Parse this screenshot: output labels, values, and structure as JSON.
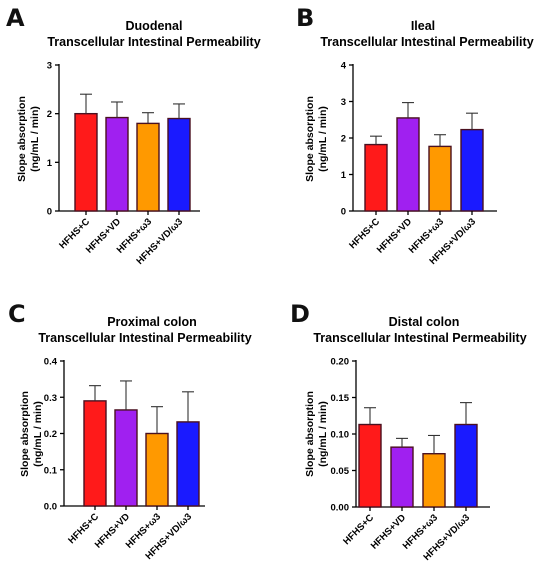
{
  "chart_data": [
    {
      "panel": "A",
      "type": "bar",
      "title": [
        "Duodenal",
        "Transcellular Intestinal Permeability"
      ],
      "ylabel": [
        "Slope absorption",
        "(ng/mL / min)"
      ],
      "ylim": [
        0,
        3
      ],
      "yticks": [
        "0",
        "1",
        "2",
        "3"
      ],
      "categories": [
        "HFHS+C",
        "HFHS+VD",
        "HFHS+ω3",
        "HFHS+VD/ω3"
      ],
      "values": [
        2.0,
        1.92,
        1.8,
        1.9
      ],
      "errors": [
        0.4,
        0.32,
        0.22,
        0.3
      ],
      "colors": [
        "#ff1a1a",
        "#a020f0",
        "#ff9900",
        "#1a1aff"
      ]
    },
    {
      "panel": "B",
      "type": "bar",
      "title": [
        "Ileal",
        "Transcellular Intestinal Permeability"
      ],
      "ylabel": [
        "Slope absorption",
        "(ng/mL / min)"
      ],
      "ylim": [
        0,
        4
      ],
      "yticks": [
        "0",
        "1",
        "2",
        "3",
        "4"
      ],
      "categories": [
        "HFHS+C",
        "HFHS+VD",
        "HFHS+ω3",
        "HFHS+VD/ω3"
      ],
      "values": [
        1.82,
        2.55,
        1.77,
        2.23
      ],
      "errors": [
        0.23,
        0.42,
        0.32,
        0.45
      ],
      "colors": [
        "#ff1a1a",
        "#a020f0",
        "#ff9900",
        "#1a1aff"
      ]
    },
    {
      "panel": "C",
      "type": "bar",
      "title": [
        "Proximal colon",
        "Transcellular Intestinal Permeability"
      ],
      "ylabel": [
        "Slope absorption",
        "(ng/mL / min)"
      ],
      "ylim": [
        0,
        0.4
      ],
      "yticks": [
        "0.0",
        "0.1",
        "0.2",
        "0.3",
        "0.4"
      ],
      "categories": [
        "HFHS+C",
        "HFHS+VD",
        "HFHS+ω3",
        "HFHS+VD/ω3"
      ],
      "values": [
        0.29,
        0.265,
        0.2,
        0.232
      ],
      "errors": [
        0.042,
        0.08,
        0.074,
        0.083
      ],
      "colors": [
        "#ff1a1a",
        "#a020f0",
        "#ff9900",
        "#1a1aff"
      ]
    },
    {
      "panel": "D",
      "type": "bar",
      "title": [
        "Distal colon",
        "Transcellular Intestinal Permeability"
      ],
      "ylabel": [
        "Slope absorption",
        "(ng/mL / min)"
      ],
      "ylim": [
        0,
        0.2
      ],
      "yticks": [
        "0.00",
        "0.05",
        "0.10",
        "0.15",
        "0.20"
      ],
      "categories": [
        "HFHS+C",
        "HFHS+VD",
        "HFHS+ω3",
        "HFHS+VD/ω3"
      ],
      "values": [
        0.113,
        0.082,
        0.073,
        0.113
      ],
      "errors": [
        0.023,
        0.012,
        0.025,
        0.03
      ],
      "colors": [
        "#ff1a1a",
        "#a020f0",
        "#ff9900",
        "#1a1aff"
      ]
    }
  ]
}
